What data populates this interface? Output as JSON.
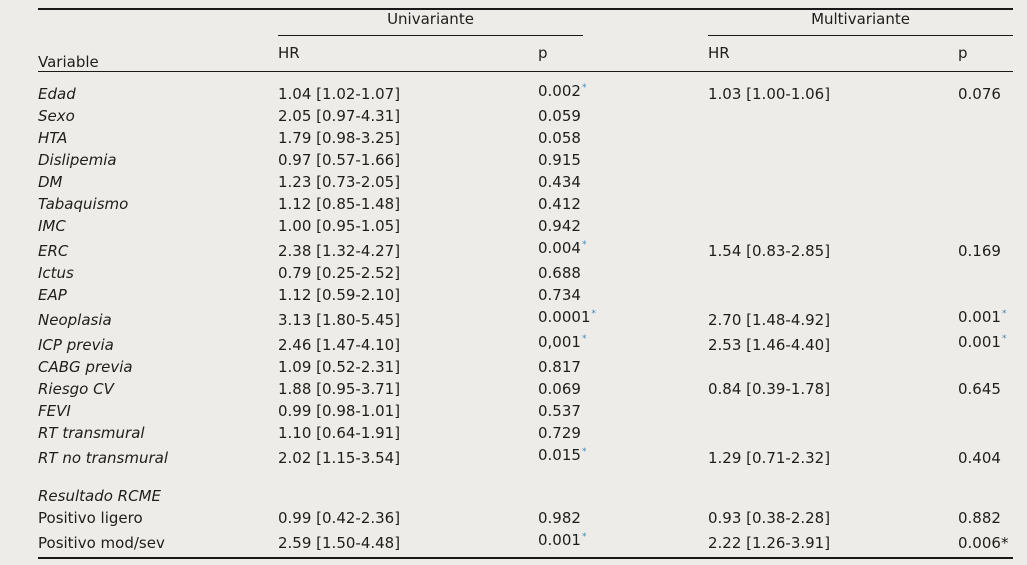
{
  "page": {
    "background": "#eeece8"
  },
  "colors": {
    "text": "#1e1e1c",
    "rule": "#1a1a1a",
    "star_blue": "#3d85b8"
  },
  "table": {
    "headers": {
      "variable": "Variable",
      "univariante": "Univariante",
      "multivariante": "Multivariante",
      "hr": "HR",
      "p": "p"
    },
    "rows": [
      {
        "label": "Edad",
        "italic": true,
        "section": false,
        "u_hr": "1.04 [1.02-1.07]",
        "u_p": "0.002",
        "u_star": "sup",
        "m_hr": "1.03 [1.00-1.06]",
        "m_p": "0.076",
        "m_star": ""
      },
      {
        "label": "Sexo",
        "italic": true,
        "section": false,
        "u_hr": "2.05 [0.97-4.31]",
        "u_p": "0.059",
        "u_star": "",
        "m_hr": "",
        "m_p": "",
        "m_star": ""
      },
      {
        "label": "HTA",
        "italic": true,
        "section": false,
        "u_hr": "1.79 [0.98-3.25]",
        "u_p": "0.058",
        "u_star": "",
        "m_hr": "",
        "m_p": "",
        "m_star": ""
      },
      {
        "label": "Dislipemia",
        "italic": true,
        "section": false,
        "u_hr": "0.97 [0.57-1.66]",
        "u_p": "0.915",
        "u_star": "",
        "m_hr": "",
        "m_p": "",
        "m_star": ""
      },
      {
        "label": "DM",
        "italic": true,
        "section": false,
        "u_hr": "1.23 [0.73-2.05]",
        "u_p": "0.434",
        "u_star": "",
        "m_hr": "",
        "m_p": "",
        "m_star": ""
      },
      {
        "label": "Tabaquismo",
        "italic": true,
        "section": false,
        "u_hr": "1.12 [0.85-1.48]",
        "u_p": "0.412",
        "u_star": "",
        "m_hr": "",
        "m_p": "",
        "m_star": ""
      },
      {
        "label": "IMC",
        "italic": true,
        "section": false,
        "u_hr": "1.00 [0.95-1.05]",
        "u_p": "0.942",
        "u_star": "",
        "m_hr": "",
        "m_p": "",
        "m_star": ""
      },
      {
        "label": "ERC",
        "italic": true,
        "section": false,
        "u_hr": "2.38 [1.32-4.27]",
        "u_p": "0.004",
        "u_star": "sup",
        "m_hr": "1.54 [0.83-2.85]",
        "m_p": "0.169",
        "m_star": ""
      },
      {
        "label": "Ictus",
        "italic": true,
        "section": false,
        "u_hr": "0.79 [0.25-2.52]",
        "u_p": "0.688",
        "u_star": "",
        "m_hr": "",
        "m_p": "",
        "m_star": ""
      },
      {
        "label": "EAP",
        "italic": true,
        "section": false,
        "u_hr": "1.12 [0.59-2.10]",
        "u_p": "0.734",
        "u_star": "",
        "m_hr": "",
        "m_p": "",
        "m_star": ""
      },
      {
        "label": "Neoplasia",
        "italic": true,
        "section": false,
        "u_hr": "3.13 [1.80-5.45]",
        "u_p": "0.0001",
        "u_star": "sup",
        "m_hr": "2.70 [1.48-4.92]",
        "m_p": "0.001",
        "m_star": "sup"
      },
      {
        "label": "ICP previa",
        "italic": true,
        "section": false,
        "u_hr": "2.46 [1.47-4.10]",
        "u_p": "0,001",
        "u_star": "sup",
        "m_hr": "2.53 [1.46-4.40]",
        "m_p": "0.001",
        "m_star": "sup"
      },
      {
        "label": "CABG previa",
        "italic": true,
        "section": false,
        "u_hr": "1.09 [0.52-2.31]",
        "u_p": "0.817",
        "u_star": "",
        "m_hr": "",
        "m_p": "",
        "m_star": ""
      },
      {
        "label": "Riesgo CV",
        "italic": true,
        "section": false,
        "u_hr": "1.88 [0.95-3.71]",
        "u_p": "0.069",
        "u_star": "",
        "m_hr": "0.84 [0.39-1.78]",
        "m_p": "0.645",
        "m_star": ""
      },
      {
        "label": "FEVI",
        "italic": true,
        "section": false,
        "u_hr": "0.99 [0.98-1.01]",
        "u_p": "0.537",
        "u_star": "",
        "m_hr": "",
        "m_p": "",
        "m_star": ""
      },
      {
        "label": "RT transmural",
        "italic": true,
        "section": false,
        "u_hr": "1.10 [0.64-1.91]",
        "u_p": "0.729",
        "u_star": "",
        "m_hr": "",
        "m_p": "",
        "m_star": ""
      },
      {
        "label": "RT no transmural",
        "italic": true,
        "section": false,
        "u_hr": "2.02 [1.15-3.54]",
        "u_p": "0.015",
        "u_star": "sup",
        "m_hr": "1.29 [0.71-2.32]",
        "m_p": "0.404",
        "m_star": ""
      },
      {
        "label": "Resultado RCME",
        "italic": true,
        "section": true,
        "u_hr": "",
        "u_p": "",
        "u_star": "",
        "m_hr": "",
        "m_p": "",
        "m_star": ""
      },
      {
        "label": "Positivo ligero",
        "italic": false,
        "section": false,
        "u_hr": "0.99 [0.42-2.36]",
        "u_p": "0.982",
        "u_star": "",
        "m_hr": "0.93 [0.38-2.28]",
        "m_p": "0.882",
        "m_star": ""
      },
      {
        "label": "Positivo mod/sev",
        "italic": false,
        "section": false,
        "u_hr": "2.59 [1.50-4.48]",
        "u_p": "0.001",
        "u_star": "sup",
        "m_hr": "2.22 [1.26-3.91]",
        "m_p": "0.006",
        "m_star": "inline"
      }
    ]
  }
}
